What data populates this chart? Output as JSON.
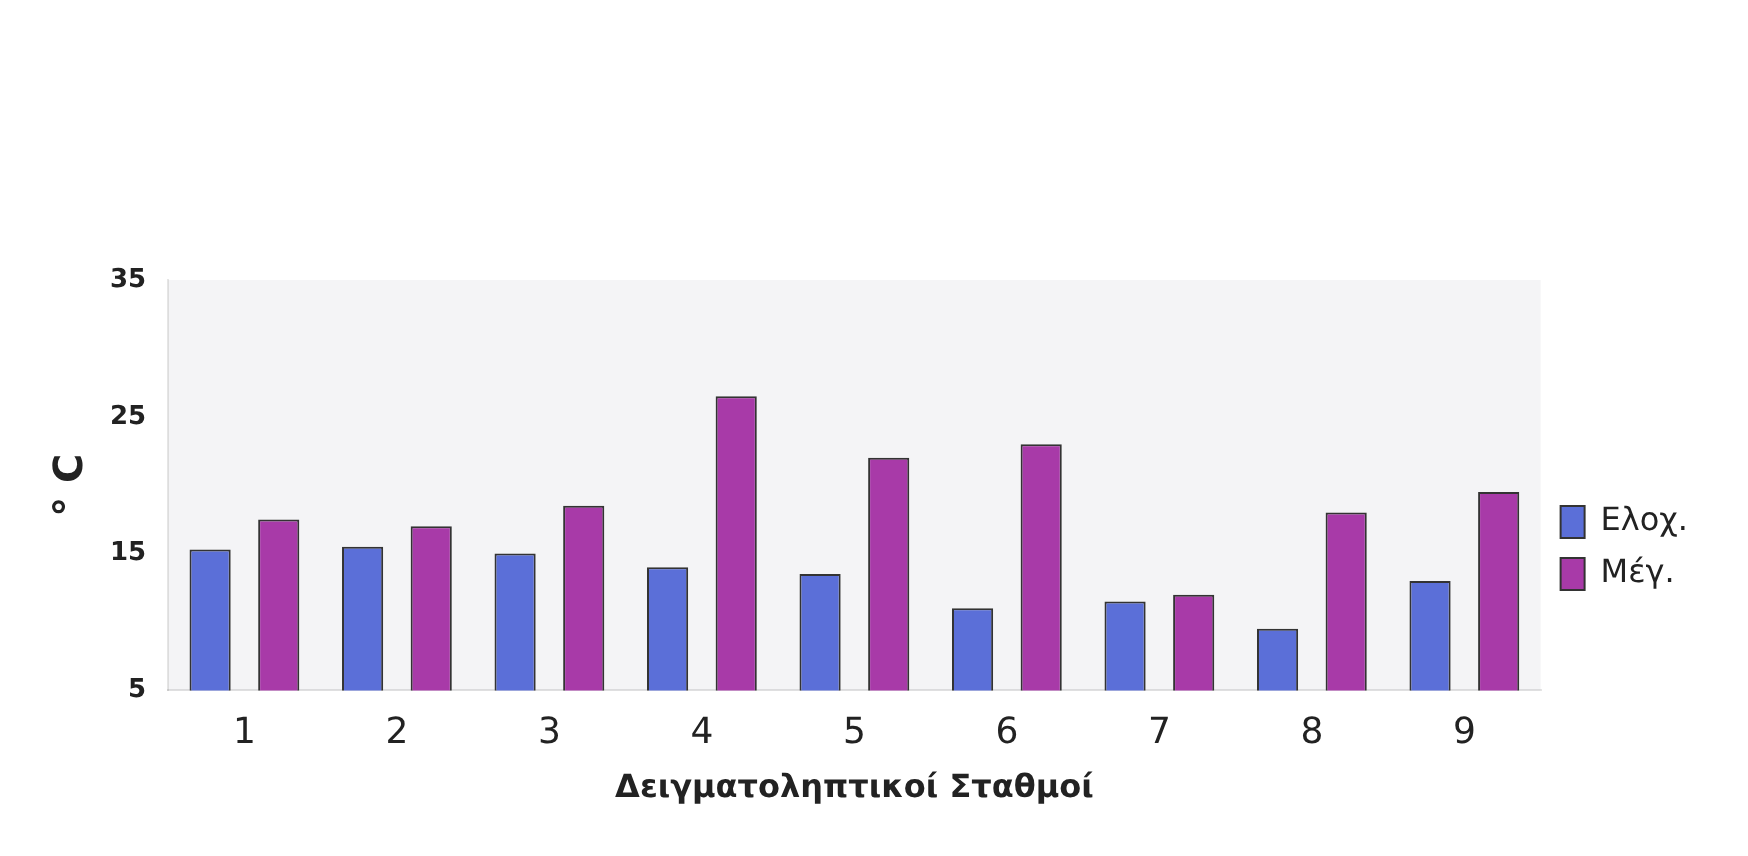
{
  "chart_data": {
    "type": "bar",
    "xlabel": "Δειγματοληπτικοί Σταθμοί",
    "ylabel": "° C",
    "categories": [
      "1",
      "2",
      "3",
      "4",
      "5",
      "6",
      "7",
      "8",
      "9"
    ],
    "series": [
      {
        "name": "Ελοχ.",
        "color": "#5b6fd8",
        "values": [
          15.3,
          15.5,
          15,
          14,
          13.5,
          11,
          11.5,
          9.5,
          13
        ]
      },
      {
        "name": "Μέγ.",
        "color": "#a83aa8",
        "values": [
          17.5,
          17,
          18.5,
          26.5,
          22,
          23,
          12,
          18,
          19.5
        ]
      }
    ],
    "ylim": [
      5,
      35
    ],
    "yticks": [
      5,
      15,
      25,
      35
    ],
    "grid": false,
    "legend": "right"
  }
}
